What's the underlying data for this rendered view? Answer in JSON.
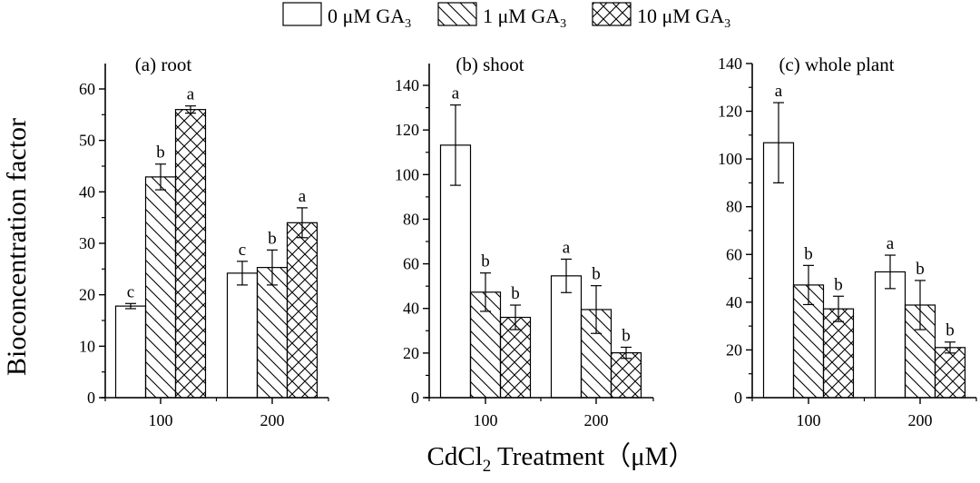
{
  "legend": {
    "items": [
      {
        "label": "0 μM GA",
        "sub": "3",
        "pattern": "none"
      },
      {
        "label": "1 μM GA",
        "sub": "3",
        "pattern": "diag"
      },
      {
        "label": "10 μM GA",
        "sub": "3",
        "pattern": "cross"
      }
    ]
  },
  "ylabel": "Bioconcentration factor",
  "xlabel": {
    "main": "CdCl",
    "sub": "2",
    "rest": " Treatment（μM）"
  },
  "chart_data": [
    {
      "type": "bar",
      "title": "(a) root",
      "categories": [
        "100",
        "200"
      ],
      "ylim": [
        0,
        65
      ],
      "yticks": [
        0,
        10,
        20,
        30,
        40,
        50,
        60
      ],
      "series": [
        {
          "name": "0 μM GA3",
          "values": [
            17.8,
            24.2
          ],
          "errors": [
            0.5,
            2.3
          ],
          "letters": [
            "c",
            "c"
          ]
        },
        {
          "name": "1 μM GA3",
          "values": [
            42.9,
            25.3
          ],
          "errors": [
            2.5,
            3.4
          ],
          "letters": [
            "b",
            "b"
          ]
        },
        {
          "name": "10 μM GA3",
          "values": [
            56.0,
            34.0
          ],
          "errors": [
            0.7,
            2.9
          ],
          "letters": [
            "a",
            "a"
          ]
        }
      ]
    },
    {
      "type": "bar",
      "title": "(b) shoot",
      "categories": [
        "100",
        "200"
      ],
      "ylim": [
        0,
        150
      ],
      "yticks": [
        0,
        20,
        40,
        60,
        80,
        100,
        120,
        140
      ],
      "series": [
        {
          "name": "0 μM GA3",
          "values": [
            113.2,
            54.6
          ],
          "errors": [
            18.0,
            7.5
          ],
          "letters": [
            "a",
            "a"
          ]
        },
        {
          "name": "1 μM GA3",
          "values": [
            47.3,
            39.5
          ],
          "errors": [
            8.6,
            10.7
          ],
          "letters": [
            "b",
            "b"
          ]
        },
        {
          "name": "10 μM GA3",
          "values": [
            36.0,
            20.1
          ],
          "errors": [
            5.5,
            2.5
          ],
          "letters": [
            "b",
            "b"
          ]
        }
      ]
    },
    {
      "type": "bar",
      "title": "(c) whole plant",
      "categories": [
        "100",
        "200"
      ],
      "ylim": [
        0,
        140
      ],
      "yticks": [
        0,
        20,
        40,
        60,
        80,
        100,
        120,
        140
      ],
      "series": [
        {
          "name": "0 μM GA3",
          "values": [
            106.8,
            52.7
          ],
          "errors": [
            16.8,
            7.0
          ],
          "letters": [
            "a",
            "a"
          ]
        },
        {
          "name": "1 μM GA3",
          "values": [
            47.2,
            38.8
          ],
          "errors": [
            8.2,
            10.3
          ],
          "letters": [
            "b",
            "b"
          ]
        },
        {
          "name": "10 μM GA3",
          "values": [
            37.2,
            21.0
          ],
          "errors": [
            5.3,
            2.3
          ],
          "letters": [
            "b",
            "b"
          ]
        }
      ]
    }
  ]
}
